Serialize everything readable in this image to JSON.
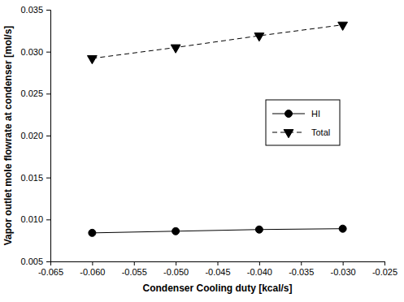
{
  "chart_data": {
    "type": "line",
    "x_label": "Condenser Cooling duty [kcal/s]",
    "y_label": "Vapor outlet mole flowrate at condenser [mol/s]",
    "x": [
      -0.06,
      -0.05,
      -0.04,
      -0.03
    ],
    "series": [
      {
        "name": "HI",
        "color": "#000000",
        "marker": "circle",
        "line_style": "solid",
        "values": [
          0.0084,
          0.0086,
          0.0088,
          0.0089
        ]
      },
      {
        "name": "Total",
        "color": "#000000",
        "marker": "triangle-down",
        "line_style": "dashed",
        "values": [
          0.0292,
          0.0305,
          0.0319,
          0.0332
        ]
      }
    ],
    "xlim": [
      -0.065,
      -0.025
    ],
    "xticks": [
      -0.065,
      {
        "value": -0.06,
        "label": "-0.060"
      },
      -0.055,
      {
        "value": -0.05,
        "label": "-0.050"
      },
      -0.045,
      {
        "value": -0.04,
        "label": "-0.040"
      },
      -0.035,
      {
        "value": -0.03,
        "label": "-0.030"
      },
      -0.025
    ],
    "ylim": [
      0.005,
      0.035
    ],
    "yticks": [
      0.005,
      {
        "value": 0.01,
        "label": "0.010"
      },
      0.015,
      {
        "value": 0.02,
        "label": "0.020"
      },
      0.025,
      {
        "value": 0.03,
        "label": "0.030"
      },
      0.035
    ],
    "grid": false,
    "legend": "right"
  }
}
